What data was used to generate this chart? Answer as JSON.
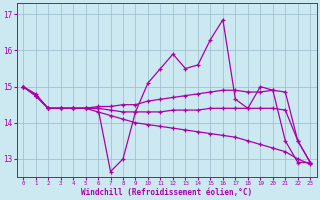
{
  "xlabel": "Windchill (Refroidissement éolien,°C)",
  "background_color": "#cce8f0",
  "line_color": "#aa00aa",
  "grid_color": "#99bbcc",
  "xlim": [
    -0.5,
    23.5
  ],
  "ylim": [
    12.5,
    17.3
  ],
  "yticks": [
    13,
    14,
    15,
    16,
    17
  ],
  "xticks": [
    0,
    1,
    2,
    3,
    4,
    5,
    6,
    7,
    8,
    9,
    10,
    11,
    12,
    13,
    14,
    15,
    16,
    17,
    18,
    19,
    20,
    21,
    22,
    23
  ],
  "series": [
    [
      15.0,
      14.8,
      14.4,
      14.4,
      14.4,
      14.4,
      14.4,
      12.65,
      13.0,
      14.3,
      15.1,
      15.5,
      15.9,
      15.5,
      15.6,
      16.3,
      16.85,
      14.65,
      14.4,
      15.0,
      14.9,
      13.5,
      12.9,
      12.9
    ],
    [
      15.0,
      14.75,
      14.4,
      14.4,
      14.4,
      14.4,
      14.45,
      14.45,
      14.5,
      14.5,
      14.6,
      14.65,
      14.7,
      14.75,
      14.8,
      14.85,
      14.9,
      14.9,
      14.85,
      14.85,
      14.9,
      14.85,
      13.5,
      12.9
    ],
    [
      15.0,
      14.75,
      14.4,
      14.4,
      14.4,
      14.4,
      14.4,
      14.35,
      14.3,
      14.3,
      14.3,
      14.3,
      14.35,
      14.35,
      14.35,
      14.4,
      14.4,
      14.4,
      14.4,
      14.4,
      14.4,
      14.35,
      13.5,
      12.9
    ],
    [
      15.0,
      14.75,
      14.4,
      14.4,
      14.4,
      14.4,
      14.3,
      14.2,
      14.1,
      14.0,
      13.95,
      13.9,
      13.85,
      13.8,
      13.75,
      13.7,
      13.65,
      13.6,
      13.5,
      13.4,
      13.3,
      13.2,
      13.0,
      12.85
    ]
  ]
}
